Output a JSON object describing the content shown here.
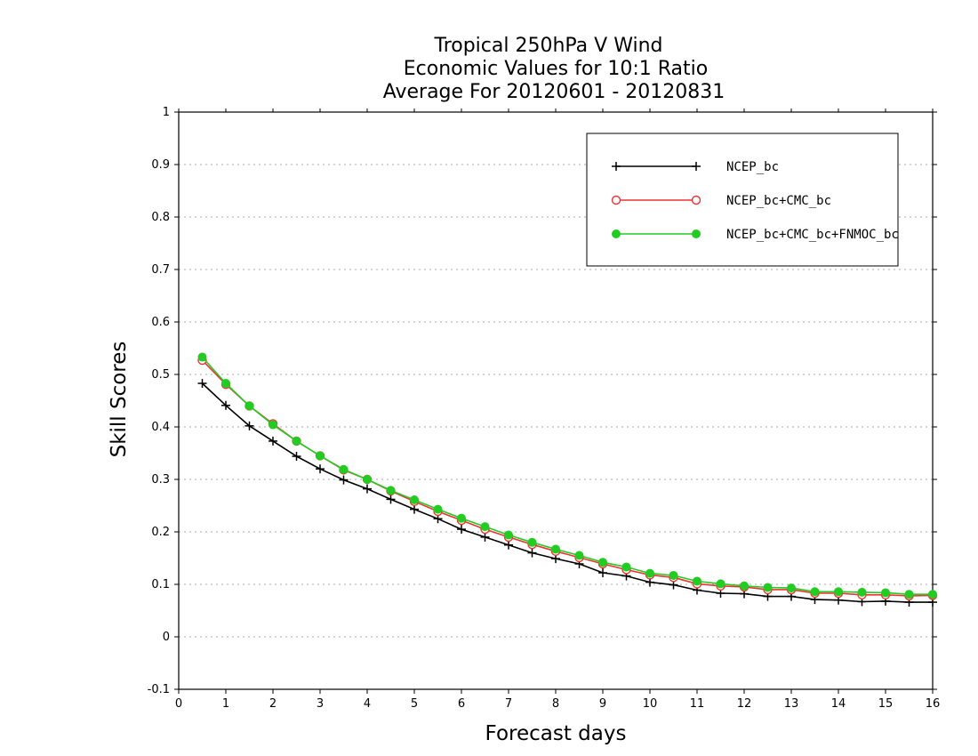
{
  "chart_data": {
    "type": "line",
    "title_lines": [
      "Tropical 250hPa V Wind",
      "Economic Values for 10:1 Ratio",
      "Average For 20120601 - 20120831"
    ],
    "xlabel": "Forecast days",
    "ylabel": "Skill Scores",
    "xlim": [
      0,
      16
    ],
    "ylim": [
      -0.1,
      1
    ],
    "x_ticks": [
      0,
      1,
      2,
      3,
      4,
      5,
      6,
      7,
      8,
      9,
      10,
      11,
      12,
      13,
      14,
      15,
      16
    ],
    "x_tick_labels": [
      "0",
      "1",
      "2",
      "3",
      "4",
      "5",
      "6",
      "7",
      "8",
      "9",
      "10",
      "11",
      "12",
      "13",
      "14",
      "15",
      "16"
    ],
    "y_ticks": [
      -0.1,
      0,
      0.1,
      0.2,
      0.3,
      0.4,
      0.5,
      0.6,
      0.7,
      0.8,
      0.9,
      1
    ],
    "y_tick_labels": [
      "-0.1",
      "0",
      "0.1",
      "0.2",
      "0.3",
      "0.4",
      "0.5",
      "0.6",
      "0.7",
      "0.8",
      "0.9",
      "1"
    ],
    "grid": true,
    "legend_position": "top-right",
    "x": [
      0.5,
      1,
      1.5,
      2,
      2.5,
      3,
      3.5,
      4,
      4.5,
      5,
      5.5,
      6,
      6.5,
      7,
      7.5,
      8,
      8.5,
      9,
      9.5,
      10,
      10.5,
      11,
      11.5,
      12,
      12.5,
      13,
      13.5,
      14,
      14.5,
      15,
      15.5,
      16
    ],
    "series": [
      {
        "name": "NCEP_bc",
        "color": "#000000",
        "marker": "plus",
        "values": [
          0.483,
          0.441,
          0.402,
          0.373,
          0.344,
          0.32,
          0.299,
          0.282,
          0.262,
          0.243,
          0.225,
          0.205,
          0.19,
          0.175,
          0.16,
          0.149,
          0.139,
          0.122,
          0.116,
          0.104,
          0.099,
          0.089,
          0.083,
          0.082,
          0.077,
          0.077,
          0.071,
          0.07,
          0.067,
          0.068,
          0.066,
          0.066
        ]
      },
      {
        "name": "NCEP_bc+CMC_bc",
        "color": "#ee3333",
        "marker": "open-circle",
        "values": [
          0.527,
          0.481,
          0.44,
          0.406,
          0.373,
          0.345,
          0.318,
          0.3,
          0.278,
          0.258,
          0.239,
          0.222,
          0.205,
          0.19,
          0.176,
          0.163,
          0.151,
          0.139,
          0.128,
          0.118,
          0.113,
          0.101,
          0.097,
          0.095,
          0.09,
          0.09,
          0.083,
          0.083,
          0.08,
          0.08,
          0.078,
          0.079
        ]
      },
      {
        "name": "NCEP_bc+CMC_bc+FNMOC_bc",
        "color": "#22cc22",
        "marker": "filled-circle",
        "values": [
          0.533,
          0.483,
          0.44,
          0.404,
          0.373,
          0.345,
          0.319,
          0.3,
          0.279,
          0.261,
          0.243,
          0.226,
          0.21,
          0.194,
          0.18,
          0.167,
          0.155,
          0.142,
          0.133,
          0.121,
          0.117,
          0.106,
          0.101,
          0.097,
          0.094,
          0.093,
          0.086,
          0.086,
          0.085,
          0.084,
          0.081,
          0.081
        ]
      }
    ]
  }
}
